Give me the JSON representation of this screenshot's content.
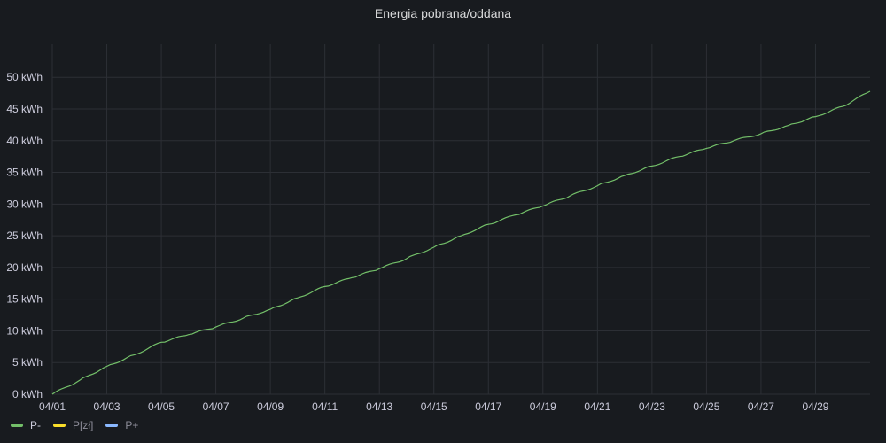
{
  "panel": {
    "title": "Energia pobrana/oddana"
  },
  "chart_data": {
    "type": "line",
    "title": "Energia pobrana/oddana",
    "xlabel": "",
    "ylabel": "",
    "x_ticks": [
      "04/01",
      "04/03",
      "04/05",
      "04/07",
      "04/09",
      "04/11",
      "04/13",
      "04/15",
      "04/17",
      "04/19",
      "04/21",
      "04/23",
      "04/25",
      "04/27",
      "04/29"
    ],
    "y_ticks": [
      "0 kWh",
      "5 kWh",
      "10 kWh",
      "15 kWh",
      "20 kWh",
      "25 kWh",
      "30 kWh",
      "35 kWh",
      "40 kWh",
      "45 kWh",
      "50 kWh"
    ],
    "ylim": [
      0,
      50
    ],
    "xlim": [
      "04/01",
      "05/01"
    ],
    "grid": true,
    "legend_position": "bottom-left",
    "series": [
      {
        "name": "P-",
        "color": "#73bf69",
        "x": [
          "04/01",
          "04/02",
          "04/03",
          "04/04",
          "04/05",
          "04/06",
          "04/07",
          "04/08",
          "04/09",
          "04/10",
          "04/11",
          "04/12",
          "04/13",
          "04/14",
          "04/15",
          "04/16",
          "04/17",
          "04/18",
          "04/19",
          "04/20",
          "04/21",
          "04/22",
          "04/23",
          "04/24",
          "04/25",
          "04/26",
          "04/27",
          "04/28",
          "04/29",
          "04/30",
          "05/01"
        ],
        "values": [
          0,
          2.2,
          4.4,
          6.2,
          8.2,
          9.4,
          10.6,
          12.0,
          13.4,
          15.2,
          17.0,
          18.4,
          19.8,
          21.4,
          23.2,
          25.0,
          26.8,
          28.3,
          29.7,
          31.3,
          32.9,
          34.5,
          36.0,
          37.5,
          38.8,
          40.0,
          41.1,
          42.4,
          43.8,
          45.4,
          47.8
        ]
      },
      {
        "name": "P[zł]",
        "color": "#fade2a",
        "x": [],
        "values": []
      },
      {
        "name": "P+",
        "color": "#8ab8ff",
        "x": [],
        "values": []
      }
    ]
  }
}
